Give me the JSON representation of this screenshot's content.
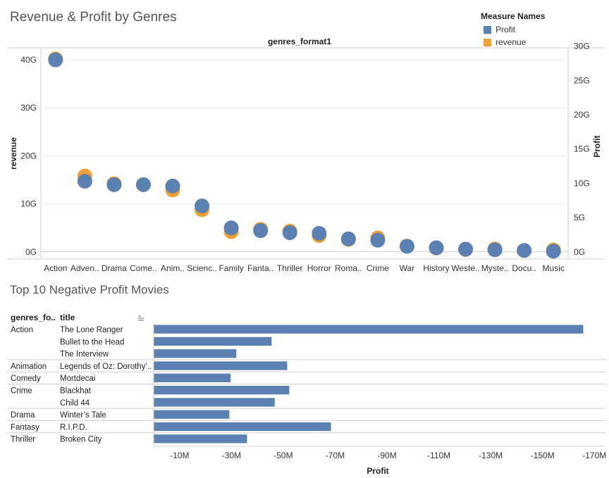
{
  "charts": {
    "top": {
      "title": "Revenue & Profit by Genres",
      "column_header": "genres_format1",
      "legend_title": "Measure Names"
    },
    "bottom": {
      "title": "Top 10 Negative Profit Movies",
      "col1_header": "genres_fo..",
      "col2_header": "title",
      "sort_icon": "sort-descending-icon"
    }
  },
  "colors": {
    "profit": "#5b80b2",
    "revenue": "#f0a030"
  },
  "chart_data": [
    {
      "type": "scatter",
      "title": "Revenue & Profit by Genres",
      "xlabel": "genres_format1",
      "categories": [
        "Action",
        "Adven..",
        "Drama",
        "Come..",
        "Anim..",
        "Scienc..",
        "Family",
        "Fanta..",
        "Thriller",
        "Horror",
        "Roma..",
        "Crime",
        "War",
        "History",
        "Weste..",
        "Myste..",
        "Docu..",
        "Music"
      ],
      "series": [
        {
          "name": "revenue",
          "axis": "left",
          "values": [
            40.2,
            15.8,
            14.2,
            14.0,
            12.9,
            8.8,
            4.2,
            4.7,
            4.3,
            3.4,
            2.6,
            2.9,
            1.2,
            0.8,
            0.5,
            0.6,
            0.3,
            0.4
          ]
        },
        {
          "name": "Profit",
          "axis": "right",
          "values": [
            28.0,
            10.3,
            9.8,
            9.8,
            9.6,
            6.7,
            3.5,
            3.1,
            2.8,
            2.7,
            1.9,
            1.7,
            0.8,
            0.6,
            0.4,
            0.3,
            0.2,
            0.1
          ]
        }
      ],
      "left_axis": {
        "label": "revenue",
        "ticks": [
          "0G",
          "10G",
          "20G",
          "30G",
          "40G"
        ],
        "ylim": [
          -1.5,
          42.5
        ]
      },
      "right_axis": {
        "label": "Profit",
        "ticks": [
          "0G",
          "5G",
          "10G",
          "15G",
          "20G",
          "25G",
          "30G"
        ],
        "ylim": [
          -1.05,
          29.75
        ]
      },
      "legend": {
        "title": "Measure Names",
        "entries": [
          "Profit",
          "revenue"
        ],
        "position": "top-right"
      }
    },
    {
      "type": "bar",
      "title": "Top 10 Negative Profit Movies",
      "xlabel": "Profit",
      "rows": [
        {
          "genre": "Action",
          "title": "The Lone Ranger",
          "value": -165.7
        },
        {
          "genre": "",
          "title": "Bullet to the Head",
          "value": -45.5
        },
        {
          "genre": "",
          "title": "The Interview",
          "value": -31.9
        },
        {
          "genre": "Animation",
          "title": "Legends of Oz: Dorothy'..",
          "value": -51.5
        },
        {
          "genre": "Comedy",
          "title": "Mortdecai",
          "value": -29.7
        },
        {
          "genre": "Crime",
          "title": "Blackhat",
          "value": -52.3
        },
        {
          "genre": "",
          "title": "Child 44",
          "value": -46.7
        },
        {
          "genre": "Drama",
          "title": "Winter’s Tale",
          "value": -29.2
        },
        {
          "genre": "Fantasy",
          "title": "R.I.P.D.",
          "value": -68.4
        },
        {
          "genre": "Thriller",
          "title": "Broken City",
          "value": -36.0
        }
      ],
      "x_ticks": [
        {
          "value": -10,
          "label": "-10M"
        },
        {
          "value": -30,
          "label": "-30M"
        },
        {
          "value": -50,
          "label": "-50M"
        },
        {
          "value": -70,
          "label": "-70M"
        },
        {
          "value": -90,
          "label": "-90M"
        },
        {
          "value": -110,
          "label": "-110M"
        },
        {
          "value": -130,
          "label": "-130M"
        },
        {
          "value": -150,
          "label": "-150M"
        },
        {
          "value": -170,
          "label": "-170M"
        }
      ],
      "xlim": [
        0,
        -174
      ]
    }
  ]
}
